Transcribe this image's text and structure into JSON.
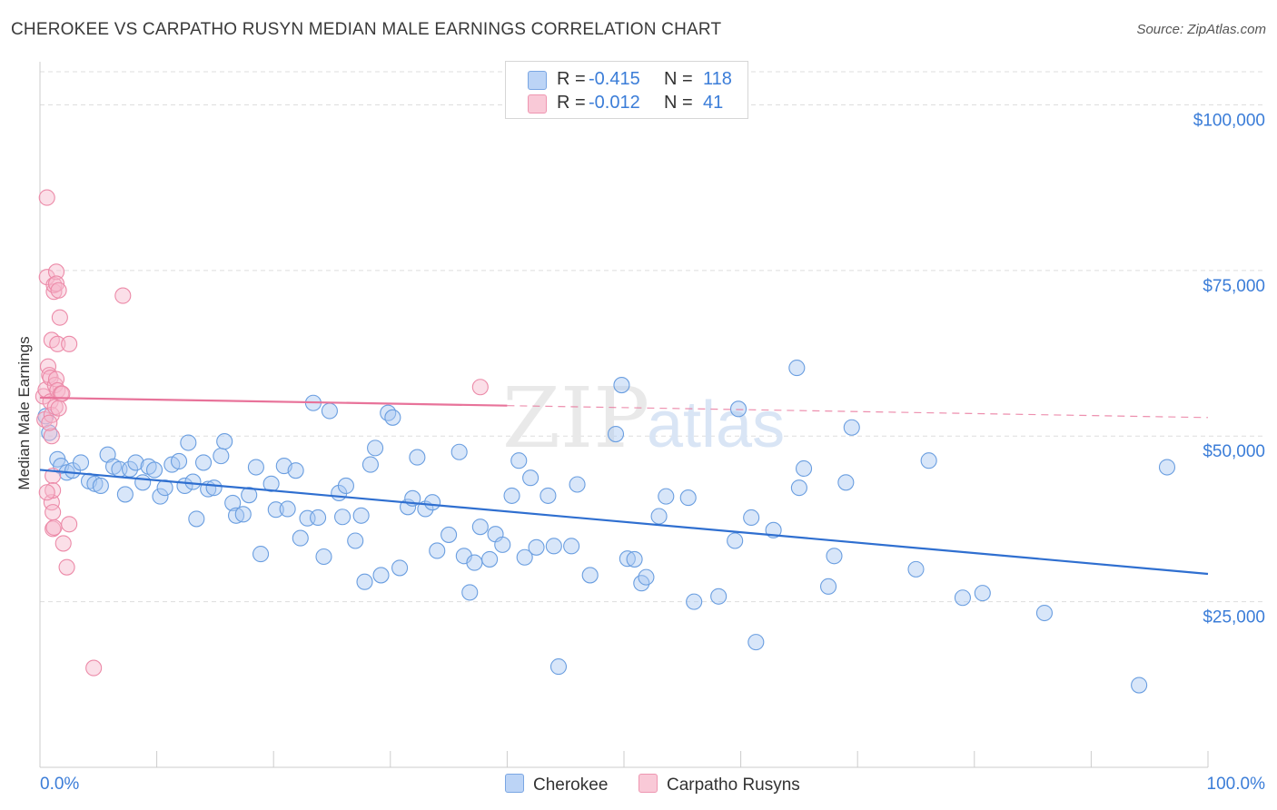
{
  "title": "CHEROKEE VS CARPATHO RUSYN MEDIAN MALE EARNINGS CORRELATION CHART",
  "source": "Source: ZipAtlas.com",
  "watermark": {
    "zip": "ZIP",
    "atlas": "atlas"
  },
  "legend": {
    "rows": [
      {
        "r_label": "R =",
        "r_value": "-0.415",
        "n_label": "N =",
        "n_value": "118"
      },
      {
        "r_label": "R =",
        "r_value": "-0.012",
        "n_label": "N =",
        "n_value": "41"
      }
    ]
  },
  "bottom_legend": [
    "Cherokee",
    "Carpatho Rusyns"
  ],
  "colors": {
    "cherokee_fill": "#a9c8f2",
    "cherokee_stroke": "#6a9ee0",
    "cherokee_line": "#2f6fd0",
    "rusyn_fill": "#f7b8cb",
    "rusyn_stroke": "#ec8aa8",
    "rusyn_line": "#e8739a",
    "axis_label": "#3b7dd8",
    "grid": "#dddddd"
  },
  "chart_data": {
    "type": "scatter",
    "title": "CHEROKEE VS CARPATHO RUSYN MEDIAN MALE EARNINGS CORRELATION CHART",
    "xlabel": "",
    "ylabel": "Median Male Earnings",
    "xlim": [
      0,
      100
    ],
    "ylim": [
      0,
      105000
    ],
    "x_tick_labels": [
      "0.0%",
      "100.0%"
    ],
    "y_ticks": [
      25000,
      50000,
      75000,
      100000
    ],
    "y_tick_labels": [
      "$25,000",
      "$50,000",
      "$75,000",
      "$100,000"
    ],
    "grid": true,
    "legend_position": "top-center",
    "series": [
      {
        "name": "Cherokee",
        "r": -0.415,
        "n": 118,
        "trend": {
          "x": [
            0,
            100
          ],
          "y": [
            44900,
            29200
          ],
          "dashed_from": null
        },
        "points": [
          [
            0.5,
            53000
          ],
          [
            0.8,
            50500
          ],
          [
            1.5,
            46500
          ],
          [
            1.8,
            45500
          ],
          [
            2.3,
            44500
          ],
          [
            2.8,
            44800
          ],
          [
            3.5,
            46000
          ],
          [
            4.2,
            43200
          ],
          [
            4.7,
            42800
          ],
          [
            5.2,
            42500
          ],
          [
            5.8,
            47200
          ],
          [
            6.3,
            45400
          ],
          [
            6.8,
            45000
          ],
          [
            7.3,
            41200
          ],
          [
            7.7,
            45000
          ],
          [
            8.2,
            46000
          ],
          [
            8.8,
            43000
          ],
          [
            9.3,
            45400
          ],
          [
            9.8,
            44900
          ],
          [
            10.3,
            40900
          ],
          [
            10.7,
            42200
          ],
          [
            11.3,
            45700
          ],
          [
            11.9,
            46200
          ],
          [
            12.4,
            42500
          ],
          [
            12.7,
            49000
          ],
          [
            13.1,
            43100
          ],
          [
            13.4,
            37500
          ],
          [
            14.0,
            46000
          ],
          [
            14.4,
            42000
          ],
          [
            14.9,
            42200
          ],
          [
            15.5,
            47000
          ],
          [
            15.8,
            49200
          ],
          [
            16.5,
            39900
          ],
          [
            16.8,
            38000
          ],
          [
            17.4,
            38200
          ],
          [
            17.9,
            41100
          ],
          [
            18.5,
            45300
          ],
          [
            18.9,
            32200
          ],
          [
            19.8,
            42800
          ],
          [
            20.2,
            38900
          ],
          [
            20.9,
            45500
          ],
          [
            21.2,
            39000
          ],
          [
            21.9,
            44800
          ],
          [
            22.3,
            34600
          ],
          [
            22.9,
            37600
          ],
          [
            23.4,
            55000
          ],
          [
            23.8,
            37700
          ],
          [
            24.3,
            31800
          ],
          [
            24.8,
            53800
          ],
          [
            25.6,
            41400
          ],
          [
            25.9,
            37800
          ],
          [
            26.2,
            42500
          ],
          [
            27.0,
            34200
          ],
          [
            27.5,
            38000
          ],
          [
            27.8,
            28000
          ],
          [
            28.3,
            45700
          ],
          [
            28.7,
            48200
          ],
          [
            29.2,
            29000
          ],
          [
            29.8,
            53500
          ],
          [
            30.2,
            52800
          ],
          [
            30.8,
            30100
          ],
          [
            31.5,
            39300
          ],
          [
            31.9,
            40600
          ],
          [
            32.3,
            46800
          ],
          [
            33.0,
            39000
          ],
          [
            33.6,
            40000
          ],
          [
            34.0,
            32700
          ],
          [
            35.0,
            35100
          ],
          [
            35.9,
            47600
          ],
          [
            36.3,
            31900
          ],
          [
            36.8,
            26400
          ],
          [
            37.2,
            30900
          ],
          [
            37.7,
            36300
          ],
          [
            38.5,
            31400
          ],
          [
            39.0,
            35200
          ],
          [
            39.6,
            33600
          ],
          [
            40.4,
            41000
          ],
          [
            41.0,
            46300
          ],
          [
            41.5,
            31700
          ],
          [
            42.0,
            43700
          ],
          [
            42.5,
            33200
          ],
          [
            43.5,
            41000
          ],
          [
            44.0,
            33400
          ],
          [
            44.4,
            15200
          ],
          [
            45.5,
            33400
          ],
          [
            46.0,
            42700
          ],
          [
            47.1,
            29000
          ],
          [
            49.3,
            50300
          ],
          [
            49.8,
            57700
          ],
          [
            50.3,
            31500
          ],
          [
            50.9,
            31400
          ],
          [
            51.5,
            27800
          ],
          [
            51.9,
            28700
          ],
          [
            53.0,
            37900
          ],
          [
            53.6,
            40900
          ],
          [
            55.5,
            40700
          ],
          [
            56.0,
            25000
          ],
          [
            58.1,
            25800
          ],
          [
            59.5,
            34200
          ],
          [
            59.8,
            54100
          ],
          [
            60.9,
            37700
          ],
          [
            61.3,
            18900
          ],
          [
            62.8,
            35800
          ],
          [
            64.8,
            60300
          ],
          [
            65.0,
            42200
          ],
          [
            65.4,
            45100
          ],
          [
            67.5,
            27300
          ],
          [
            68.0,
            31900
          ],
          [
            69.0,
            43000
          ],
          [
            69.5,
            51300
          ],
          [
            75.0,
            29900
          ],
          [
            76.1,
            46300
          ],
          [
            79.0,
            25600
          ],
          [
            80.7,
            26300
          ],
          [
            86.0,
            23300
          ],
          [
            94.1,
            12400
          ],
          [
            96.5,
            45300
          ]
        ]
      },
      {
        "name": "Carpatho Rusyns",
        "r": -0.012,
        "n": 41,
        "trend": {
          "x": [
            0,
            100
          ],
          "y": [
            55800,
            52800
          ],
          "dashed_from": 40
        },
        "points": [
          [
            0.3,
            56000
          ],
          [
            0.4,
            52500
          ],
          [
            0.5,
            57000
          ],
          [
            0.6,
            86000
          ],
          [
            0.6,
            74000
          ],
          [
            0.7,
            60500
          ],
          [
            0.8,
            59200
          ],
          [
            0.9,
            58800
          ],
          [
            0.9,
            55200
          ],
          [
            1.0,
            64500
          ],
          [
            1.0,
            53200
          ],
          [
            1.0,
            50000
          ],
          [
            1.0,
            40000
          ],
          [
            1.1,
            38500
          ],
          [
            1.1,
            44000
          ],
          [
            1.1,
            41800
          ],
          [
            1.1,
            36000
          ],
          [
            1.2,
            71800
          ],
          [
            1.2,
            72800
          ],
          [
            1.3,
            57700
          ],
          [
            1.3,
            54400
          ],
          [
            1.4,
            58600
          ],
          [
            1.4,
            74800
          ],
          [
            1.4,
            73000
          ],
          [
            1.5,
            63900
          ],
          [
            1.5,
            56900
          ],
          [
            1.6,
            72000
          ],
          [
            1.7,
            67900
          ],
          [
            1.8,
            56400
          ],
          [
            1.9,
            56400
          ],
          [
            2.0,
            33800
          ],
          [
            2.3,
            30200
          ],
          [
            2.5,
            63900
          ],
          [
            2.5,
            36700
          ],
          [
            4.6,
            15000
          ],
          [
            7.1,
            71200
          ],
          [
            37.7,
            57400
          ],
          [
            0.8,
            52000
          ],
          [
            1.2,
            36200
          ],
          [
            1.6,
            54200
          ],
          [
            0.6,
            41500
          ]
        ]
      }
    ]
  }
}
